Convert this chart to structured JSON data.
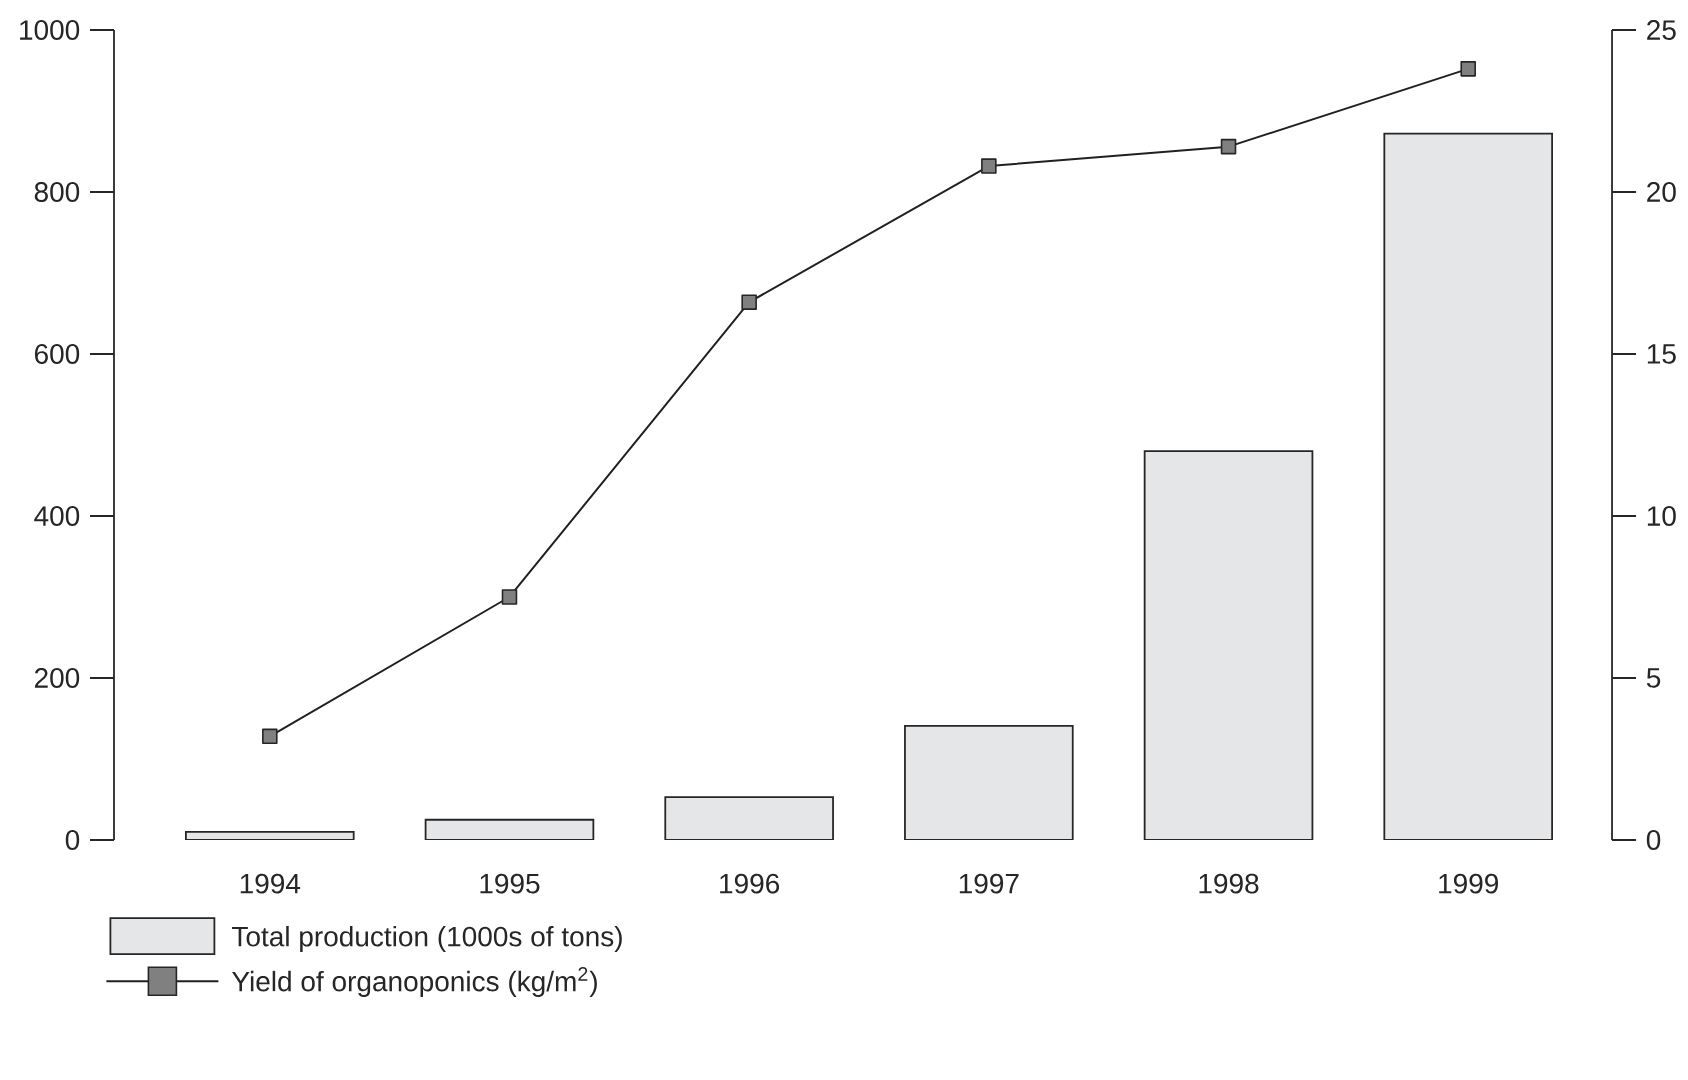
{
  "chart_data": {
    "type": "bar",
    "categories": [
      "1994",
      "1995",
      "1996",
      "1997",
      "1998",
      "1999"
    ],
    "series": [
      {
        "name": "Total production (1000s of tons)",
        "color": "#e5e6e8",
        "values": [
          10,
          25,
          53,
          141,
          480,
          872
        ]
      },
      {
        "name": "Yield of organoponics (kg/m$^{2}$)",
        "type": "line",
        "axis": "y2",
        "color": "#231f20",
        "marker": "square",
        "values": [
          3.2,
          7.5,
          16.6,
          20.8,
          21.4,
          23.8
        ]
      }
    ],
    "ylim": [
      0,
      1000
    ],
    "yticks": [
      0,
      200,
      400,
      600,
      800,
      1000
    ],
    "y2lim": [
      0,
      25
    ],
    "y2ticks": [
      0,
      5,
      10,
      15,
      20,
      25
    ],
    "grid": false,
    "legend": "bottom left"
  }
}
